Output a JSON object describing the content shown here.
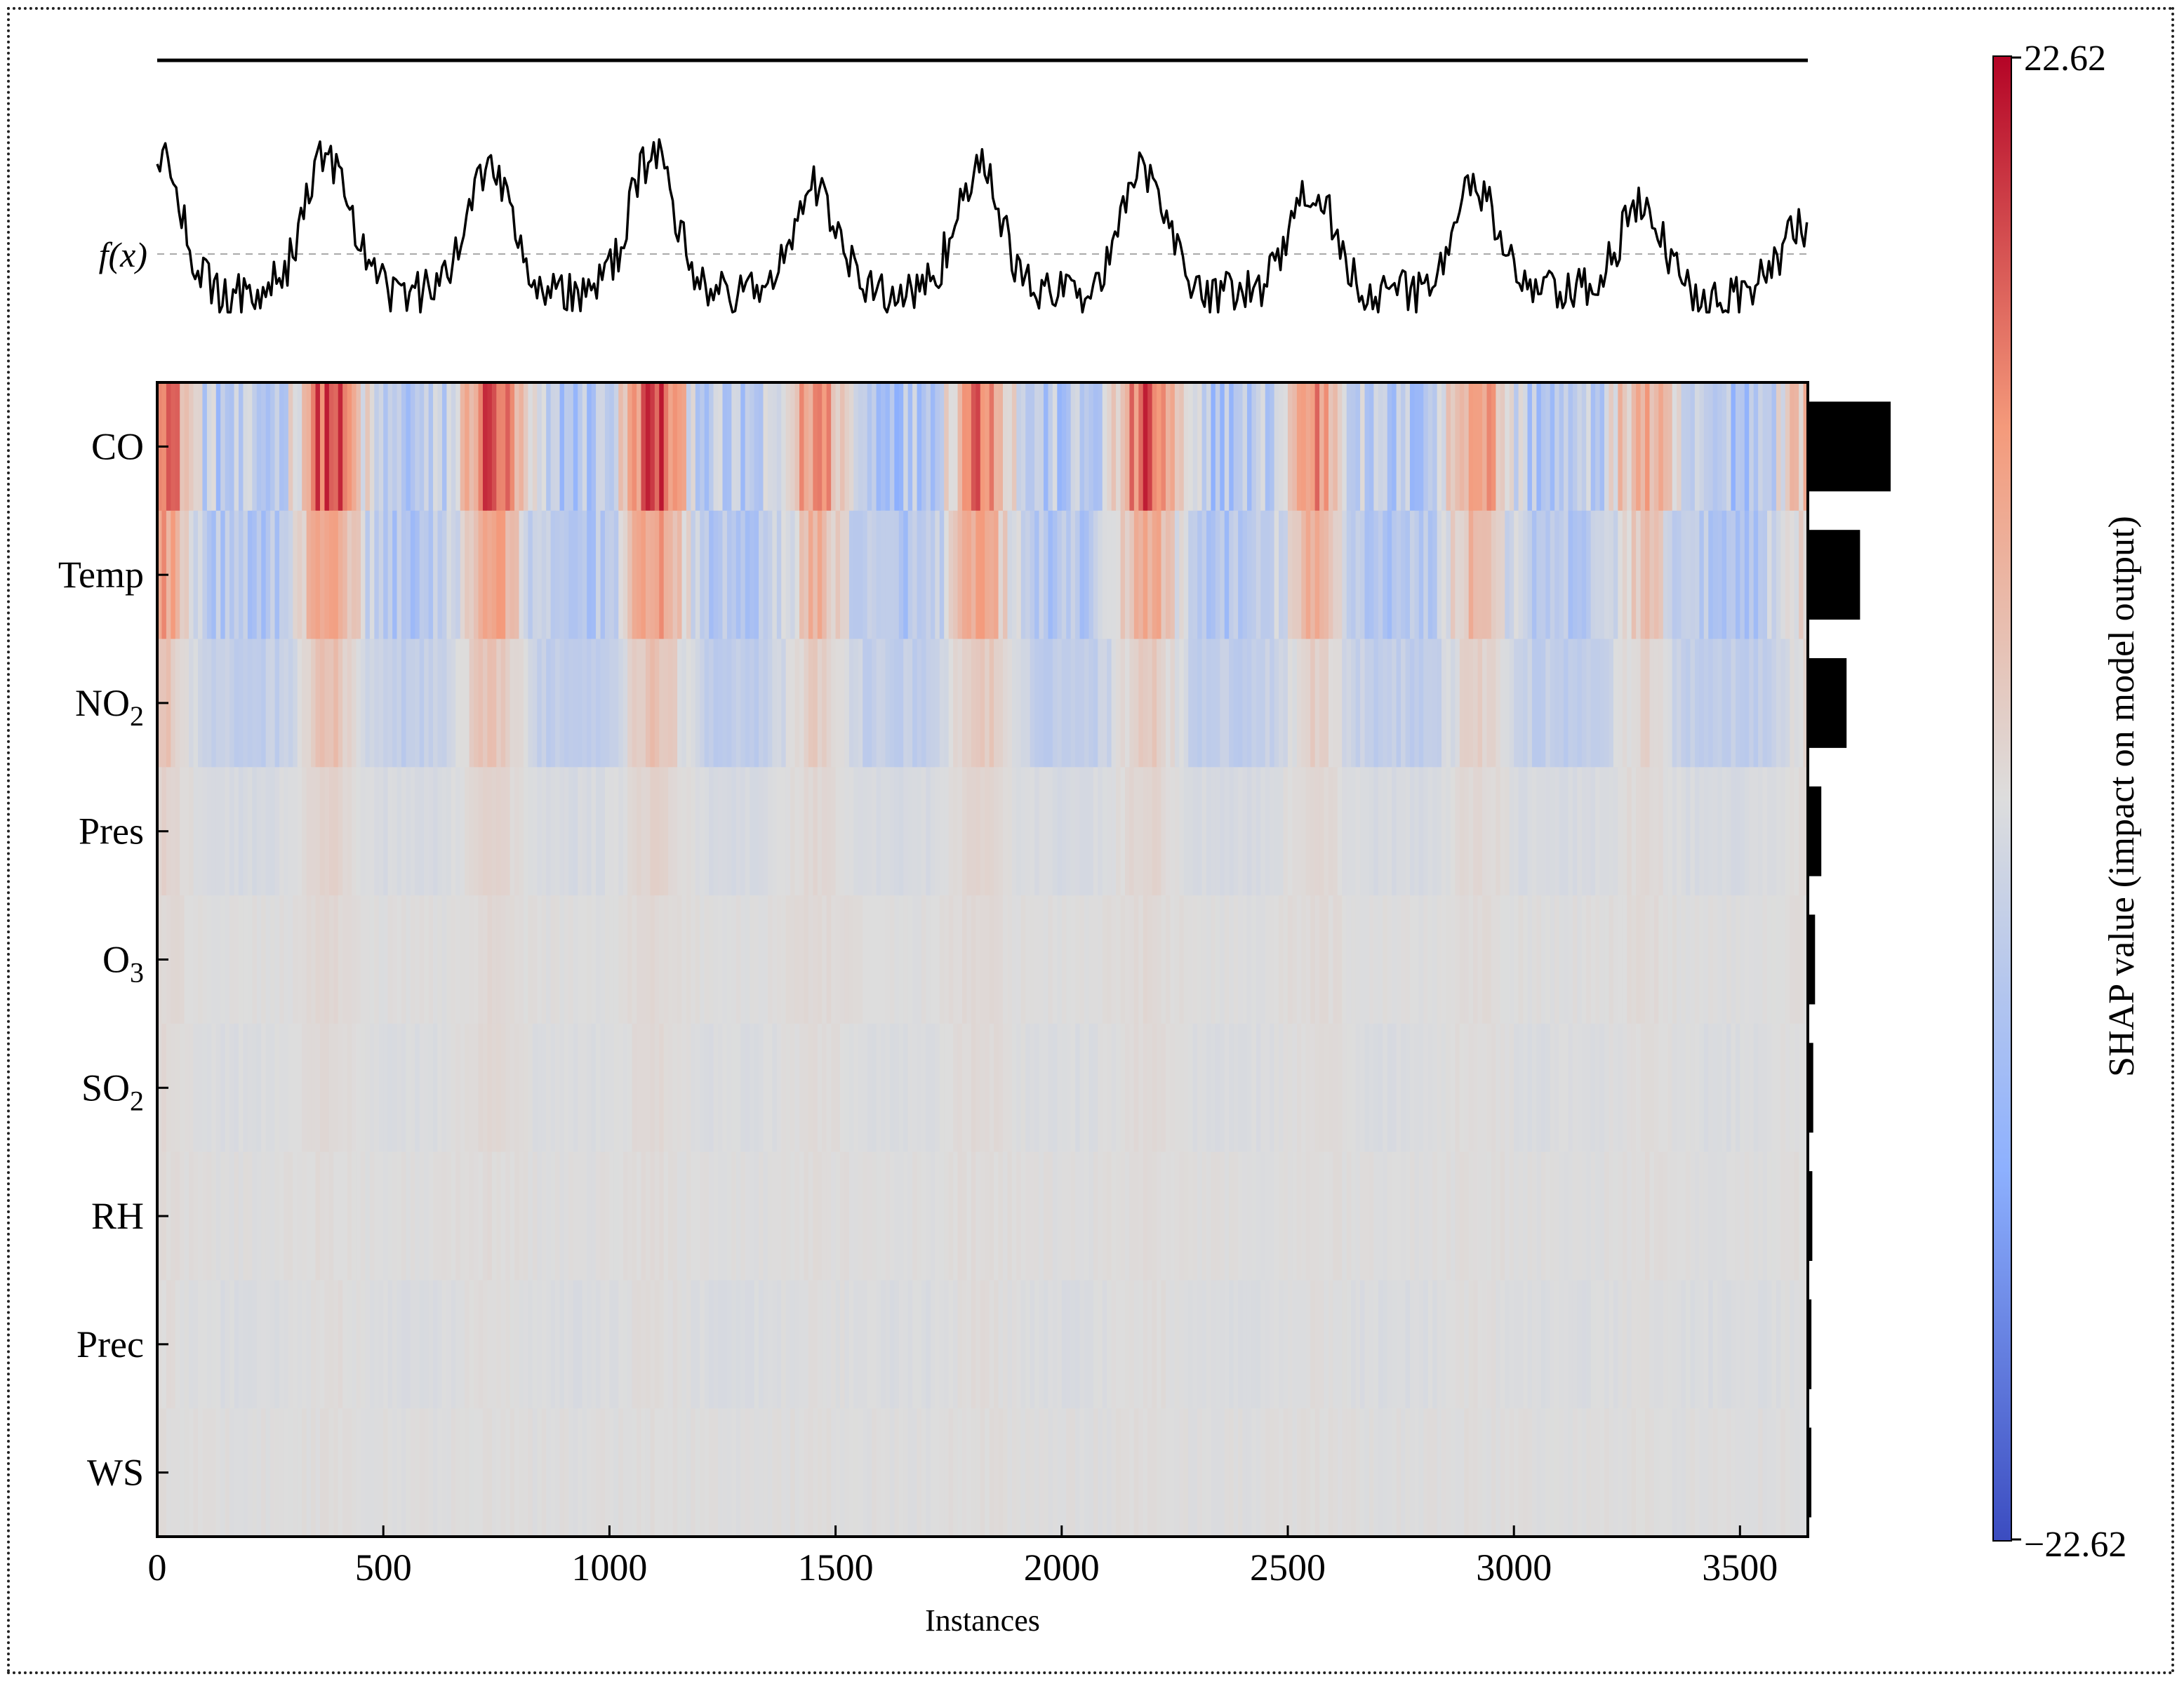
{
  "chart_data": {
    "type": "heatmap",
    "title": "",
    "xlabel": "Instances",
    "ylabel": "",
    "xlim": [
      0,
      3650
    ],
    "xticks": [
      0,
      500,
      1000,
      1500,
      2000,
      2500,
      3000,
      3500
    ],
    "output_label": "f(x)",
    "features": [
      "CO",
      "Temp",
      "NO",
      "Pres",
      "O",
      "SO",
      "RH",
      "Prec",
      "WS"
    ],
    "feature_subscripts": [
      "",
      "",
      "2",
      "",
      "3",
      "2",
      "",
      "",
      ""
    ],
    "mean_abs_importance": [
      9.2,
      5.8,
      4.3,
      1.5,
      0.8,
      0.6,
      0.5,
      0.4,
      0.3
    ],
    "importance_scale_max": 9.2,
    "colorbar": {
      "label": "SHAP value (impact on model output)",
      "max_label": "22.62",
      "min_label": "−22.62",
      "vmin": -22.62,
      "vmax": 22.62,
      "colors": [
        "#3b4cc0",
        "#8db0fe",
        "#dddddd",
        "#f49a7b",
        "#b40426"
      ]
    },
    "pattern": {
      "cycle_length": 365,
      "peak_positions": [
        0,
        375,
        735,
        1095,
        1455,
        1815,
        2185,
        2555,
        2915,
        3280,
        3640
      ],
      "amplitudes": [
        1.0,
        1.0,
        0.95,
        1.0,
        0.75,
        0.9,
        0.9,
        0.75,
        0.75,
        0.6,
        0.5
      ],
      "feature_mean_shap": [
        {
          "hot": 18,
          "cold": -6
        },
        {
          "hot": 11,
          "cold": -6
        },
        {
          "hot": 5,
          "cold": -4
        },
        {
          "hot": 2,
          "cold": -1
        },
        {
          "hot": 1,
          "cold": 0
        },
        {
          "hot": 1,
          "cold": -0.5
        },
        {
          "hot": 0.5,
          "cold": 0
        },
        {
          "hot": 0.5,
          "cold": -0.5
        },
        {
          "hot": 0.3,
          "cold": 0
        }
      ]
    }
  }
}
